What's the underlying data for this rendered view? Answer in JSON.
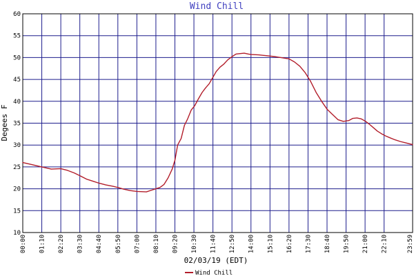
{
  "colors": {
    "title": "#3f3fbf",
    "grid": "#1c1c8c",
    "axis": "#000000",
    "series": "#b21d2a",
    "background": "#ffffff"
  },
  "chart_data": {
    "type": "line",
    "title": "Wind Chill",
    "xlabel": "02/03/19 (EDT)",
    "ylabel": "Degees F",
    "ylim": [
      10,
      60
    ],
    "yticks": [
      10,
      15,
      20,
      25,
      30,
      35,
      40,
      45,
      50,
      55,
      60
    ],
    "xlim": [
      0,
      1435
    ],
    "xticks": [
      {
        "minutes": 0,
        "label": "00:00"
      },
      {
        "minutes": 70,
        "label": "01:10"
      },
      {
        "minutes": 140,
        "label": "02:20"
      },
      {
        "minutes": 210,
        "label": "03:30"
      },
      {
        "minutes": 280,
        "label": "04:40"
      },
      {
        "minutes": 350,
        "label": "05:50"
      },
      {
        "minutes": 420,
        "label": "07:00"
      },
      {
        "minutes": 490,
        "label": "08:10"
      },
      {
        "minutes": 560,
        "label": "09:20"
      },
      {
        "minutes": 630,
        "label": "10:30"
      },
      {
        "minutes": 700,
        "label": "11:40"
      },
      {
        "minutes": 770,
        "label": "12:50"
      },
      {
        "minutes": 840,
        "label": "14:00"
      },
      {
        "minutes": 910,
        "label": "15:10"
      },
      {
        "minutes": 980,
        "label": "16:20"
      },
      {
        "minutes": 1050,
        "label": "17:30"
      },
      {
        "minutes": 1120,
        "label": "18:40"
      },
      {
        "minutes": 1190,
        "label": "19:50"
      },
      {
        "minutes": 1260,
        "label": "21:00"
      },
      {
        "minutes": 1330,
        "label": "22:10"
      },
      {
        "minutes": 1435,
        "label": "23:59"
      }
    ],
    "grid": true,
    "legend": "bottom-center",
    "series": [
      {
        "name": "Wind Chill",
        "color": "#b21d2a",
        "x": [
          0,
          35,
          70,
          105,
          140,
          165,
          190,
          210,
          235,
          260,
          280,
          305,
          330,
          350,
          372,
          395,
          420,
          455,
          475,
          490,
          505,
          520,
          535,
          550,
          560,
          570,
          583,
          595,
          607,
          620,
          633,
          646,
          660,
          672,
          686,
          700,
          712,
          726,
          740,
          755,
          770,
          785,
          800,
          815,
          830,
          840,
          870,
          900,
          930,
          960,
          980,
          1000,
          1020,
          1040,
          1060,
          1080,
          1100,
          1120,
          1140,
          1160,
          1180,
          1200,
          1215,
          1230,
          1245,
          1260,
          1275,
          1290,
          1305,
          1320,
          1335,
          1350,
          1370,
          1390,
          1410,
          1435
        ],
        "y": [
          26.0,
          25.5,
          25.0,
          24.5,
          24.6,
          24.2,
          23.6,
          23.0,
          22.2,
          21.7,
          21.3,
          20.9,
          20.6,
          20.3,
          19.9,
          19.6,
          19.4,
          19.3,
          19.7,
          20.0,
          20.3,
          21.0,
          22.5,
          24.5,
          26.5,
          30.0,
          31.5,
          34.5,
          36.0,
          38.0,
          39.0,
          40.5,
          42.0,
          43.0,
          44.0,
          45.5,
          46.8,
          47.8,
          48.5,
          49.5,
          50.2,
          50.8,
          50.9,
          51.0,
          50.8,
          50.7,
          50.6,
          50.4,
          50.2,
          49.9,
          49.7,
          49.0,
          48.0,
          46.5,
          44.5,
          42.0,
          40.0,
          38.2,
          37.0,
          35.8,
          35.4,
          35.6,
          36.1,
          36.2,
          36.0,
          35.5,
          34.8,
          34.0,
          33.2,
          32.6,
          32.1,
          31.7,
          31.2,
          30.8,
          30.5,
          30.1
        ]
      }
    ]
  }
}
